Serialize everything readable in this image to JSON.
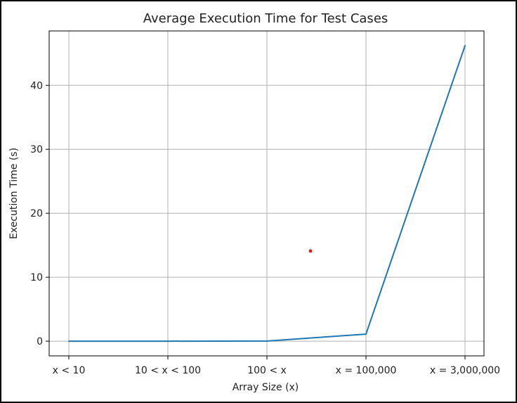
{
  "chart_data": {
    "type": "line",
    "title": "Average Execution Time for Test Cases",
    "xlabel": "Array Size (x)",
    "ylabel": "Execution Time (s)",
    "categories": [
      "x < 10",
      "10 < x < 100",
      "100 < x",
      "x = 100,000",
      "x = 3,000,000"
    ],
    "series": [
      {
        "color": "#1f77b4",
        "values": [
          0.0,
          0.0,
          0.02,
          1.1,
          46.2
        ]
      }
    ],
    "ylim": [
      -2.3,
      48.5
    ],
    "yticks": [
      0,
      10,
      20,
      30,
      40
    ],
    "grid": true,
    "marker": {
      "color": "#d62728",
      "x_category_position": 2.44,
      "y": 14.1
    },
    "colors": {
      "grid": "#b0b0b0",
      "axes": "#000000",
      "text": "#222222"
    }
  }
}
